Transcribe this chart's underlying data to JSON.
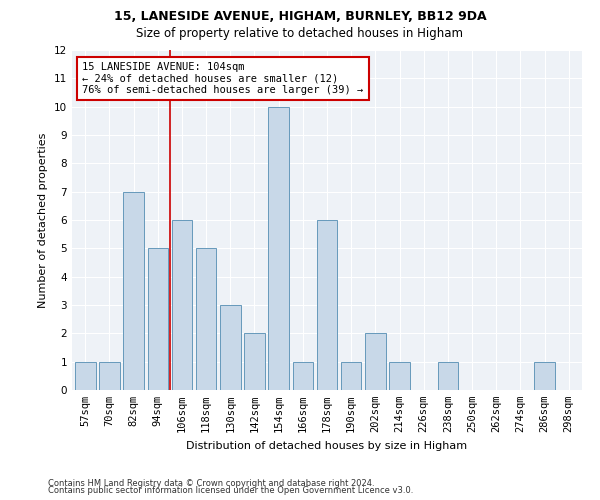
{
  "title1": "15, LANESIDE AVENUE, HIGHAM, BURNLEY, BB12 9DA",
  "title2": "Size of property relative to detached houses in Higham",
  "xlabel": "Distribution of detached houses by size in Higham",
  "ylabel": "Number of detached properties",
  "categories": [
    "57sqm",
    "70sqm",
    "82sqm",
    "94sqm",
    "106sqm",
    "118sqm",
    "130sqm",
    "142sqm",
    "154sqm",
    "166sqm",
    "178sqm",
    "190sqm",
    "202sqm",
    "214sqm",
    "226sqm",
    "238sqm",
    "250sqm",
    "262sqm",
    "274sqm",
    "286sqm",
    "298sqm"
  ],
  "values": [
    1,
    1,
    7,
    5,
    6,
    5,
    3,
    2,
    10,
    1,
    6,
    1,
    2,
    1,
    0,
    1,
    0,
    0,
    0,
    1,
    0
  ],
  "bar_color": "#c8d8e8",
  "bar_edge_color": "#6699bb",
  "vline_x": 3.5,
  "ylim": [
    0,
    12
  ],
  "yticks": [
    0,
    1,
    2,
    3,
    4,
    5,
    6,
    7,
    8,
    9,
    10,
    11,
    12
  ],
  "annotation_title": "15 LANESIDE AVENUE: 104sqm",
  "annotation_line1": "← 24% of detached houses are smaller (12)",
  "annotation_line2": "76% of semi-detached houses are larger (39) →",
  "vline_color": "#cc0000",
  "annotation_box_facecolor": "#ffffff",
  "annotation_box_edgecolor": "#cc0000",
  "footnote1": "Contains HM Land Registry data © Crown copyright and database right 2024.",
  "footnote2": "Contains public sector information licensed under the Open Government Licence v3.0.",
  "bg_color": "#eef2f7",
  "grid_color": "#ffffff",
  "title_fontsize": 9,
  "subtitle_fontsize": 8.5,
  "ylabel_fontsize": 8,
  "xlabel_fontsize": 8,
  "tick_fontsize": 7.5,
  "annot_fontsize": 7.5,
  "footnote_fontsize": 6
}
